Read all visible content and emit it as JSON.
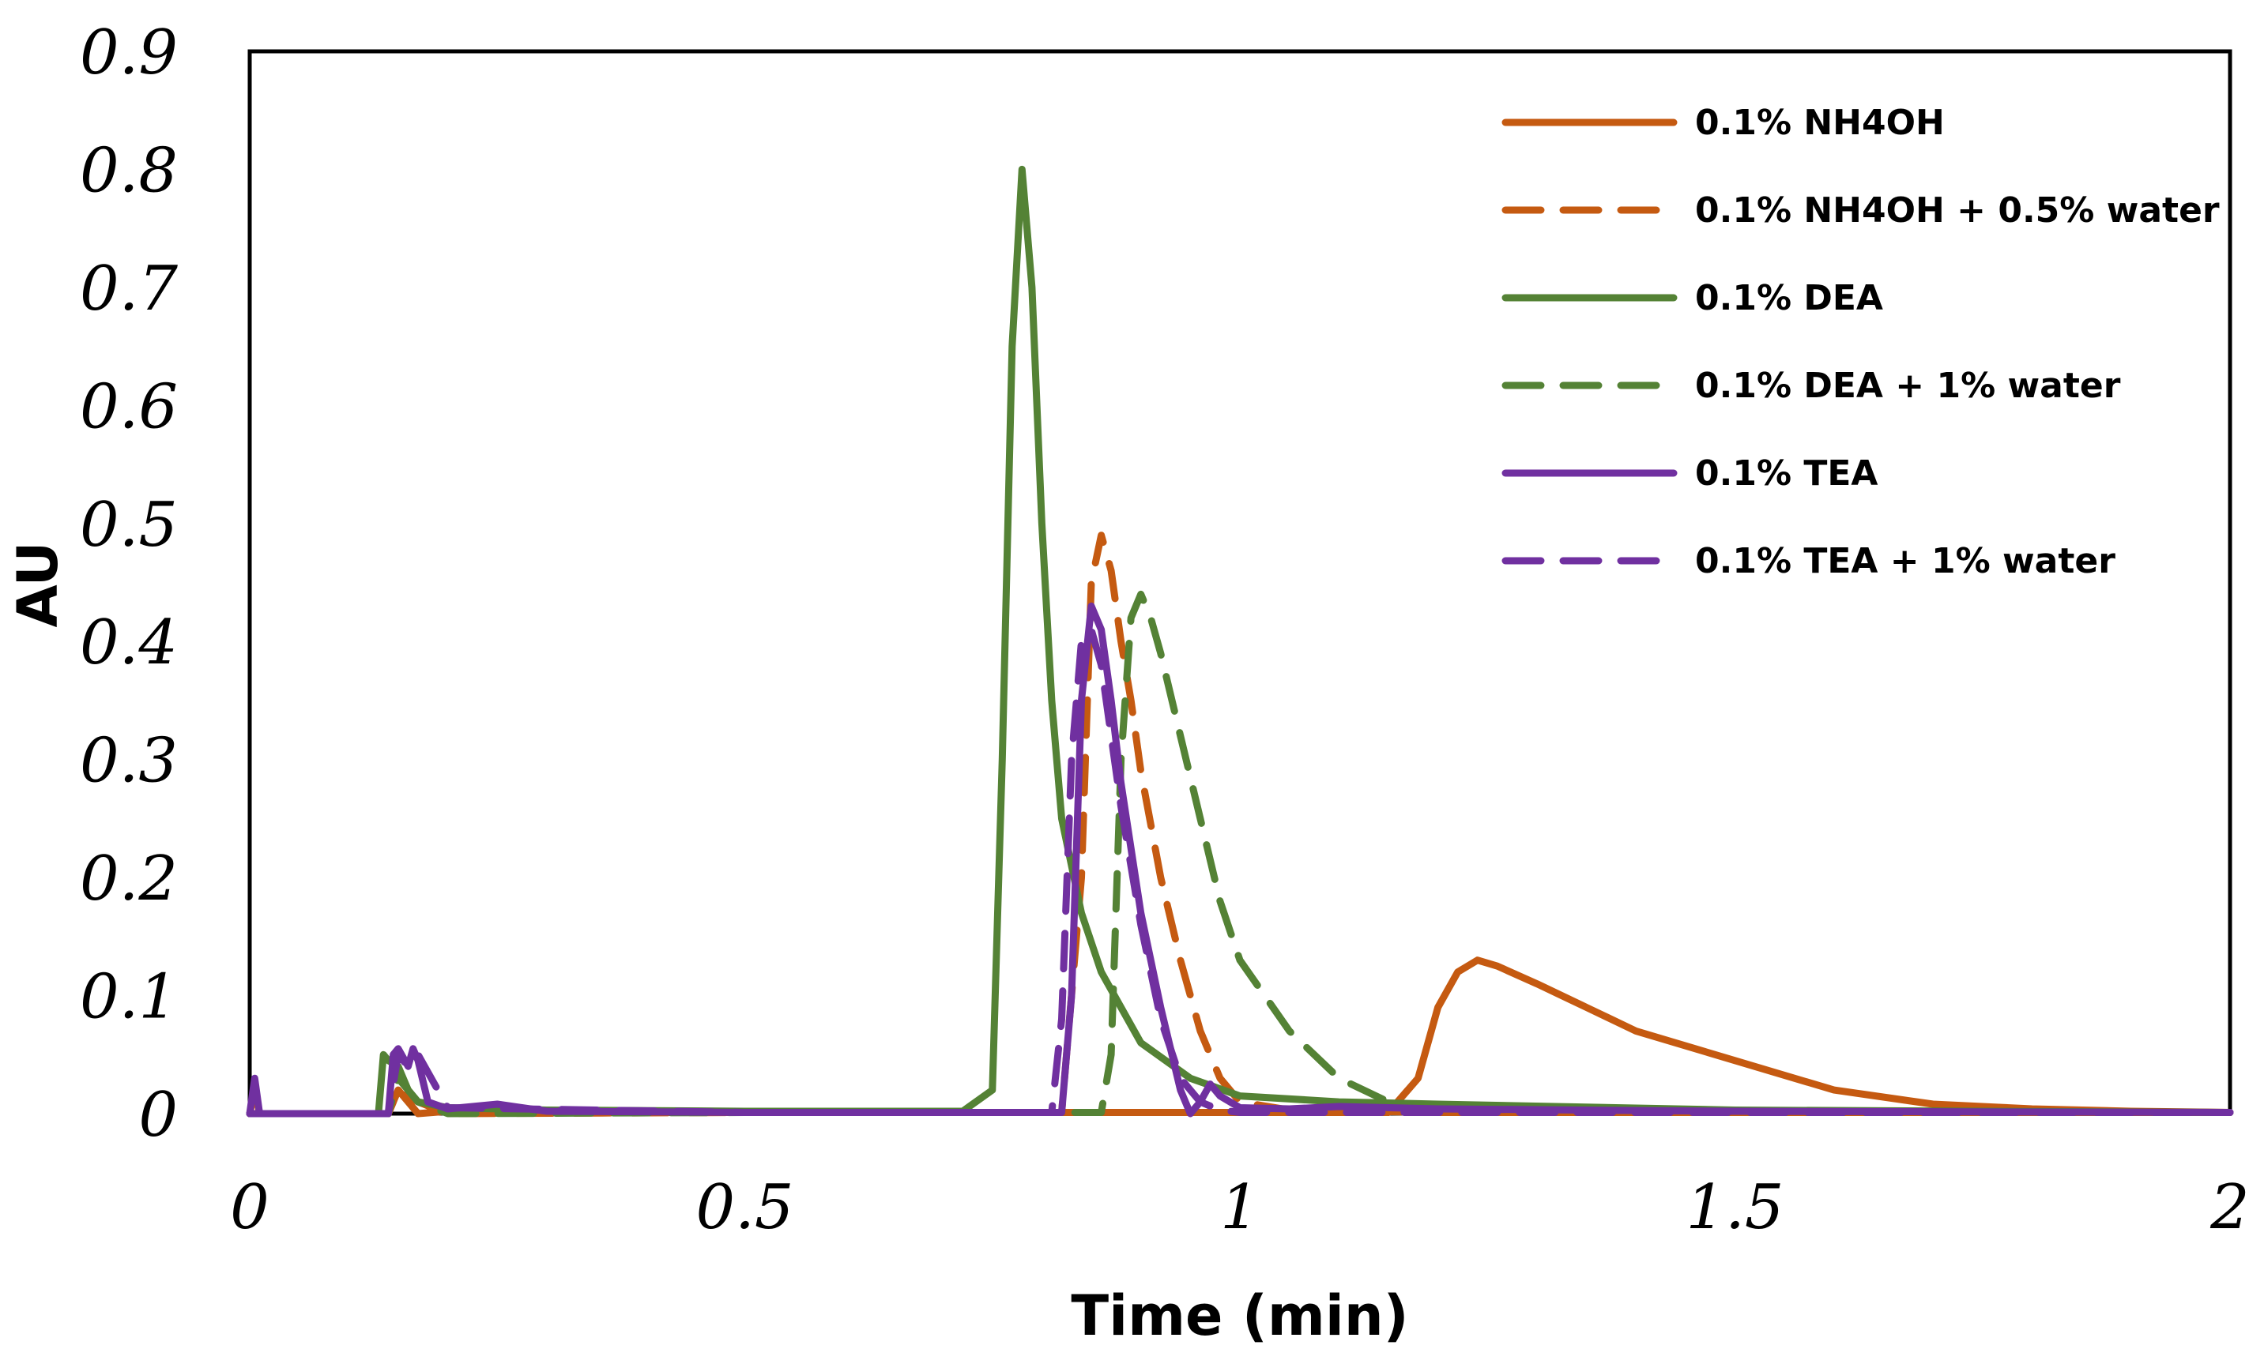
{
  "chart_data": {
    "type": "line",
    "title": "",
    "xlabel": "Time (min)",
    "ylabel": "AU",
    "xlim": [
      0,
      2
    ],
    "ylim": [
      0,
      0.9
    ],
    "x_ticks": [
      0,
      0.5,
      1,
      1.5,
      2
    ],
    "x_tick_labels": [
      "0",
      "0.5",
      "1",
      "1.5",
      "2"
    ],
    "y_ticks": [
      0,
      0.1,
      0.2,
      0.3,
      0.4,
      0.5,
      0.6,
      0.7,
      0.8,
      0.9
    ],
    "y_tick_labels": [
      "0",
      "0.1",
      "0.2",
      "0.3",
      "0.4",
      "0.5",
      "0.6",
      "0.7",
      "0.8",
      "0.9"
    ],
    "grid": false,
    "legend_position": "top-right",
    "series": [
      {
        "name": "0.1% NH4OH",
        "color": "#C55A11",
        "dash": "solid",
        "x": [
          0,
          0.005,
          0.01,
          0.14,
          0.15,
          0.16,
          0.17,
          0.2,
          0.3,
          0.5,
          0.8,
          1.0,
          1.15,
          1.18,
          1.2,
          1.22,
          1.24,
          1.26,
          1.3,
          1.35,
          1.4,
          1.5,
          1.6,
          1.7,
          1.8,
          1.9,
          2.0
        ],
        "y": [
          0,
          0.02,
          0,
          0,
          0.02,
          0.01,
          0,
          0.002,
          0.001,
          0.001,
          0.001,
          0.001,
          0.001,
          0.03,
          0.09,
          0.12,
          0.13,
          0.125,
          0.11,
          0.09,
          0.07,
          0.045,
          0.02,
          0.008,
          0.004,
          0.002,
          0.001
        ]
      },
      {
        "name": "0.1% NH4OH + 0.5% water",
        "color": "#C55A11",
        "dash": "dashed",
        "x": [
          0,
          0.14,
          0.15,
          0.17,
          0.2,
          0.5,
          0.82,
          0.84,
          0.85,
          0.86,
          0.87,
          0.88,
          0.89,
          0.9,
          0.92,
          0.94,
          0.96,
          0.98,
          1.0,
          1.05,
          1.2,
          1.5,
          2.0
        ],
        "y": [
          0,
          0,
          0.02,
          0.01,
          0,
          0.001,
          0.001,
          0.2,
          0.45,
          0.49,
          0.46,
          0.4,
          0.35,
          0.29,
          0.2,
          0.13,
          0.07,
          0.03,
          0.01,
          0.003,
          0.001,
          0.001,
          0.001
        ]
      },
      {
        "name": "0.1% DEA",
        "color": "#548235",
        "dash": "solid",
        "x": [
          0,
          0.13,
          0.135,
          0.14,
          0.15,
          0.16,
          0.17,
          0.2,
          0.3,
          0.5,
          0.72,
          0.75,
          0.76,
          0.77,
          0.78,
          0.79,
          0.8,
          0.81,
          0.82,
          0.84,
          0.86,
          0.88,
          0.9,
          0.95,
          1.0,
          1.1,
          1.2,
          1.5,
          2.0
        ],
        "y": [
          0,
          0,
          0.05,
          0.045,
          0.04,
          0.02,
          0.01,
          0.005,
          0.003,
          0.002,
          0.002,
          0.02,
          0.3,
          0.65,
          0.8,
          0.7,
          0.5,
          0.35,
          0.25,
          0.17,
          0.12,
          0.09,
          0.06,
          0.03,
          0.015,
          0.01,
          0.008,
          0.003,
          0.001
        ]
      },
      {
        "name": "0.1% DEA + 1% water",
        "color": "#548235",
        "dash": "dashed",
        "x": [
          0,
          0.14,
          0.15,
          0.17,
          0.2,
          0.5,
          0.86,
          0.87,
          0.88,
          0.89,
          0.9,
          0.91,
          0.92,
          0.94,
          0.96,
          0.98,
          1.0,
          1.05,
          1.1,
          1.15,
          1.2,
          1.5,
          2.0
        ],
        "y": [
          0,
          0,
          0.03,
          0.01,
          0,
          0.001,
          0.001,
          0.05,
          0.3,
          0.42,
          0.44,
          0.42,
          0.39,
          0.32,
          0.25,
          0.18,
          0.13,
          0.07,
          0.03,
          0.01,
          0.005,
          0.001,
          0.001
        ]
      },
      {
        "name": "0.1% TEA",
        "color": "#7030A0",
        "dash": "solid",
        "x": [
          0,
          0.005,
          0.01,
          0.14,
          0.145,
          0.15,
          0.16,
          0.165,
          0.17,
          0.18,
          0.2,
          0.25,
          0.3,
          0.5,
          0.82,
          0.83,
          0.84,
          0.85,
          0.86,
          0.87,
          0.88,
          0.9,
          0.92,
          0.94,
          0.95,
          0.96,
          0.97,
          0.98,
          1.0,
          1.05,
          1.1,
          1.2,
          1.5,
          2.0
        ],
        "y": [
          0,
          0.03,
          0,
          0,
          0.05,
          0.055,
          0.04,
          0.055,
          0.045,
          0.01,
          0.004,
          0.008,
          0.002,
          0.001,
          0.001,
          0.1,
          0.35,
          0.43,
          0.41,
          0.35,
          0.28,
          0.17,
          0.09,
          0.02,
          0.0,
          0.01,
          0.025,
          0.015,
          0.005,
          0.004,
          0.006,
          0.004,
          0.002,
          0.001
        ]
      },
      {
        "name": "0.1% TEA + 1% water",
        "color": "#7030A0",
        "dash": "dashed",
        "x": [
          0,
          0.14,
          0.15,
          0.16,
          0.17,
          0.2,
          0.5,
          0.81,
          0.82,
          0.83,
          0.84,
          0.85,
          0.86,
          0.87,
          0.88,
          0.9,
          0.92,
          0.94,
          0.96,
          0.98,
          1.0,
          1.5,
          2.0
        ],
        "y": [
          0,
          0,
          0.05,
          0.04,
          0.05,
          0.005,
          0.001,
          0.001,
          0.08,
          0.3,
          0.4,
          0.41,
          0.38,
          0.32,
          0.26,
          0.16,
          0.08,
          0.03,
          0.01,
          0.003,
          0.001,
          0.001,
          0.001
        ]
      }
    ]
  }
}
